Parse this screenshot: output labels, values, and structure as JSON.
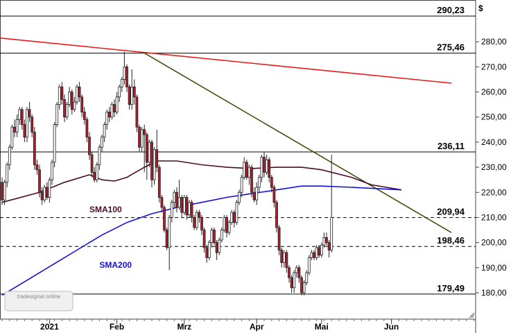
{
  "chart_data": {
    "type": "candlestick",
    "currency": "$",
    "ylim": [
      170,
      296
    ],
    "y_ticks": [
      "180,00",
      "190,00",
      "200,00",
      "210,00",
      "220,00",
      "230,00",
      "240,00",
      "250,00",
      "260,00",
      "270,00",
      "280,00"
    ],
    "x_ticks": [
      {
        "label": "2021",
        "i": 19
      },
      {
        "label": "Feb",
        "i": 46
      },
      {
        "label": "Mrz",
        "i": 73
      },
      {
        "label": "Apr",
        "i": 102
      },
      {
        "label": "Mai",
        "i": 128
      },
      {
        "label": "Jun",
        "i": 156
      }
    ],
    "levels": [
      {
        "label": "290,23",
        "value": 290.23,
        "style": "solid"
      },
      {
        "label": "275,46",
        "value": 275.46,
        "style": "solid"
      },
      {
        "label": "236,11",
        "value": 236.11,
        "style": "solid"
      },
      {
        "label": "209,94",
        "value": 209.94,
        "style": "dashed"
      },
      {
        "label": "198,46",
        "value": 198.46,
        "style": "dashed"
      },
      {
        "label": "179,49",
        "value": 179.49,
        "style": "solid"
      }
    ],
    "trendlines": [
      {
        "color": "#e8191a",
        "points": [
          [
            -1,
            281.5
          ],
          [
            180,
            263.5
          ]
        ]
      },
      {
        "color": "#4b4a12",
        "points": [
          [
            57,
            275.5
          ],
          [
            180,
            204
          ]
        ]
      }
    ],
    "series": [
      {
        "name": "SMA100",
        "color": "#4a0a2a",
        "points": [
          [
            0,
            216
          ],
          [
            15,
            220
          ],
          [
            25,
            224
          ],
          [
            35,
            227
          ],
          [
            40,
            225
          ],
          [
            45,
            224.5
          ],
          [
            50,
            226
          ],
          [
            57,
            230
          ],
          [
            62,
            232.5
          ],
          [
            70,
            232.5
          ],
          [
            80,
            231
          ],
          [
            90,
            230
          ],
          [
            100,
            229.5
          ],
          [
            110,
            230
          ],
          [
            120,
            230
          ],
          [
            128,
            229
          ],
          [
            140,
            226
          ],
          [
            148,
            223
          ],
          [
            160,
            221
          ]
        ]
      },
      {
        "name": "SMA200",
        "color": "#1111dd",
        "points": [
          [
            0,
            179
          ],
          [
            10,
            185
          ],
          [
            20,
            191
          ],
          [
            30,
            197
          ],
          [
            40,
            203
          ],
          [
            50,
            208
          ],
          [
            60,
            211.5
          ],
          [
            70,
            214
          ],
          [
            80,
            216
          ],
          [
            90,
            218
          ],
          [
            100,
            219.5
          ],
          [
            110,
            221
          ],
          [
            120,
            222.5
          ],
          [
            128,
            222.5
          ],
          [
            140,
            222
          ],
          [
            150,
            221.5
          ],
          [
            160,
            221
          ]
        ]
      }
    ],
    "candles": [
      [
        224,
        217,
        226,
        215
      ],
      [
        217,
        224,
        225,
        215
      ],
      [
        224,
        231,
        232,
        222
      ],
      [
        231,
        238,
        239,
        229
      ],
      [
        238,
        246,
        247,
        237
      ],
      [
        246,
        244,
        249,
        242
      ],
      [
        244,
        249,
        251,
        242
      ],
      [
        249,
        253,
        254,
        247
      ],
      [
        253,
        247,
        254,
        245
      ],
      [
        247,
        242,
        249,
        240
      ],
      [
        242,
        253,
        254,
        240
      ],
      [
        253,
        250,
        256,
        248
      ],
      [
        250,
        244,
        251,
        242
      ],
      [
        244,
        231,
        246,
        229
      ],
      [
        231,
        229,
        233,
        227
      ],
      [
        229,
        220,
        231,
        218
      ],
      [
        220,
        217,
        222,
        215
      ],
      [
        217,
        222,
        223,
        216
      ],
      [
        222,
        218,
        224,
        217
      ],
      [
        218,
        225,
        226,
        216
      ],
      [
        225,
        232,
        233,
        223
      ],
      [
        232,
        247,
        248,
        230
      ],
      [
        247,
        255,
        256,
        246
      ],
      [
        255,
        262,
        263,
        253
      ],
      [
        262,
        257,
        264,
        255
      ],
      [
        257,
        250,
        259,
        248
      ],
      [
        250,
        255,
        256,
        249
      ],
      [
        255,
        260,
        262,
        254
      ],
      [
        260,
        253,
        261,
        251
      ],
      [
        253,
        256,
        258,
        252
      ],
      [
        256,
        262,
        263,
        255
      ],
      [
        262,
        258,
        264,
        256
      ],
      [
        258,
        252,
        259,
        250
      ],
      [
        252,
        249,
        254,
        247
      ],
      [
        249,
        242,
        250,
        240
      ],
      [
        242,
        235,
        244,
        233
      ],
      [
        235,
        228,
        236,
        226
      ],
      [
        228,
        225,
        230,
        224
      ],
      [
        225,
        231,
        232,
        224
      ],
      [
        231,
        238,
        239,
        229
      ],
      [
        238,
        242,
        243,
        236
      ],
      [
        242,
        247,
        248,
        240
      ],
      [
        247,
        252,
        253,
        245
      ],
      [
        252,
        250,
        254,
        248
      ],
      [
        250,
        255,
        256,
        249
      ],
      [
        255,
        252,
        257,
        250
      ],
      [
        252,
        258,
        260,
        251
      ],
      [
        258,
        262,
        263,
        256
      ],
      [
        262,
        265,
        266,
        260
      ],
      [
        265,
        270,
        276,
        263
      ],
      [
        270,
        262,
        271,
        260
      ],
      [
        262,
        255,
        263,
        253
      ],
      [
        255,
        262,
        269,
        253
      ],
      [
        262,
        258,
        265,
        255
      ],
      [
        258,
        246,
        259,
        244
      ],
      [
        246,
        238,
        247,
        236
      ],
      [
        238,
        245,
        246,
        236
      ],
      [
        245,
        243,
        247,
        228
      ],
      [
        243,
        232,
        244,
        225
      ],
      [
        232,
        240,
        241,
        230
      ],
      [
        240,
        225,
        241,
        222
      ],
      [
        225,
        237,
        238,
        223
      ],
      [
        237,
        230,
        245,
        228
      ],
      [
        230,
        218,
        231,
        216
      ],
      [
        218,
        214,
        219,
        212
      ],
      [
        214,
        205,
        215,
        204
      ],
      [
        205,
        198,
        206,
        197
      ],
      [
        198,
        210,
        211,
        189
      ],
      [
        210,
        216,
        217,
        208
      ],
      [
        216,
        220,
        221,
        214
      ],
      [
        220,
        214,
        222,
        212
      ],
      [
        214,
        218,
        225,
        213
      ],
      [
        218,
        212,
        219,
        210
      ],
      [
        212,
        218,
        219,
        211
      ],
      [
        218,
        211,
        219,
        209
      ],
      [
        211,
        216,
        217,
        210
      ],
      [
        216,
        210,
        217,
        208
      ],
      [
        210,
        206,
        211,
        205
      ],
      [
        206,
        212,
        213,
        205
      ],
      [
        212,
        210,
        213,
        208
      ],
      [
        210,
        205,
        211,
        203
      ],
      [
        205,
        198,
        206,
        196
      ],
      [
        198,
        194,
        199,
        192
      ],
      [
        194,
        200,
        201,
        193
      ],
      [
        200,
        205,
        206,
        198
      ],
      [
        205,
        200,
        206,
        199
      ],
      [
        200,
        196,
        201,
        193
      ],
      [
        196,
        201,
        202,
        195
      ],
      [
        201,
        205,
        206,
        200
      ],
      [
        205,
        210,
        211,
        204
      ],
      [
        210,
        204,
        211,
        202
      ],
      [
        204,
        208,
        209,
        203
      ],
      [
        208,
        212,
        213,
        207
      ],
      [
        212,
        208,
        213,
        206
      ],
      [
        208,
        216,
        217,
        207
      ],
      [
        216,
        220,
        221,
        215
      ],
      [
        220,
        226,
        227,
        218
      ],
      [
        226,
        232,
        234,
        225
      ],
      [
        232,
        226,
        233,
        225
      ],
      [
        226,
        230,
        231,
        223
      ],
      [
        230,
        220,
        231,
        218
      ],
      [
        220,
        217,
        222,
        216
      ],
      [
        217,
        222,
        224,
        215
      ],
      [
        222,
        226,
        227,
        220
      ],
      [
        226,
        234,
        235,
        224
      ],
      [
        234,
        228,
        236,
        226
      ],
      [
        228,
        233,
        235,
        227
      ],
      [
        233,
        226,
        234,
        224
      ],
      [
        226,
        222,
        227,
        220
      ],
      [
        222,
        216,
        223,
        214
      ],
      [
        216,
        206,
        217,
        204
      ],
      [
        206,
        197,
        207,
        195
      ],
      [
        197,
        192,
        198,
        190
      ],
      [
        192,
        196,
        197,
        190
      ],
      [
        196,
        190,
        197,
        188
      ],
      [
        190,
        186,
        191,
        184
      ],
      [
        186,
        182,
        187,
        180
      ],
      [
        182,
        188,
        189,
        180
      ],
      [
        188,
        190,
        191,
        186
      ],
      [
        190,
        186,
        191,
        184
      ],
      [
        186,
        180,
        187,
        179
      ],
      [
        180,
        184,
        185,
        179
      ],
      [
        184,
        188,
        189,
        183
      ],
      [
        188,
        194,
        195,
        187
      ],
      [
        194,
        196,
        197,
        193
      ],
      [
        196,
        194,
        197,
        193
      ],
      [
        194,
        198,
        199,
        193
      ],
      [
        198,
        195,
        199,
        194
      ],
      [
        195,
        199,
        200,
        194
      ],
      [
        199,
        202,
        204,
        198
      ],
      [
        202,
        200,
        204,
        199
      ],
      [
        200,
        197,
        201,
        194
      ],
      [
        197,
        210,
        235,
        196
      ]
    ],
    "annotations": [
      {
        "text": "SMA100",
        "color": "#4a0a2a",
        "at": [
          35,
          212
        ]
      },
      {
        "text": "SMA200",
        "color": "#1111dd",
        "at": [
          39,
          190
        ]
      }
    ],
    "watermark": "tradesignal online"
  }
}
